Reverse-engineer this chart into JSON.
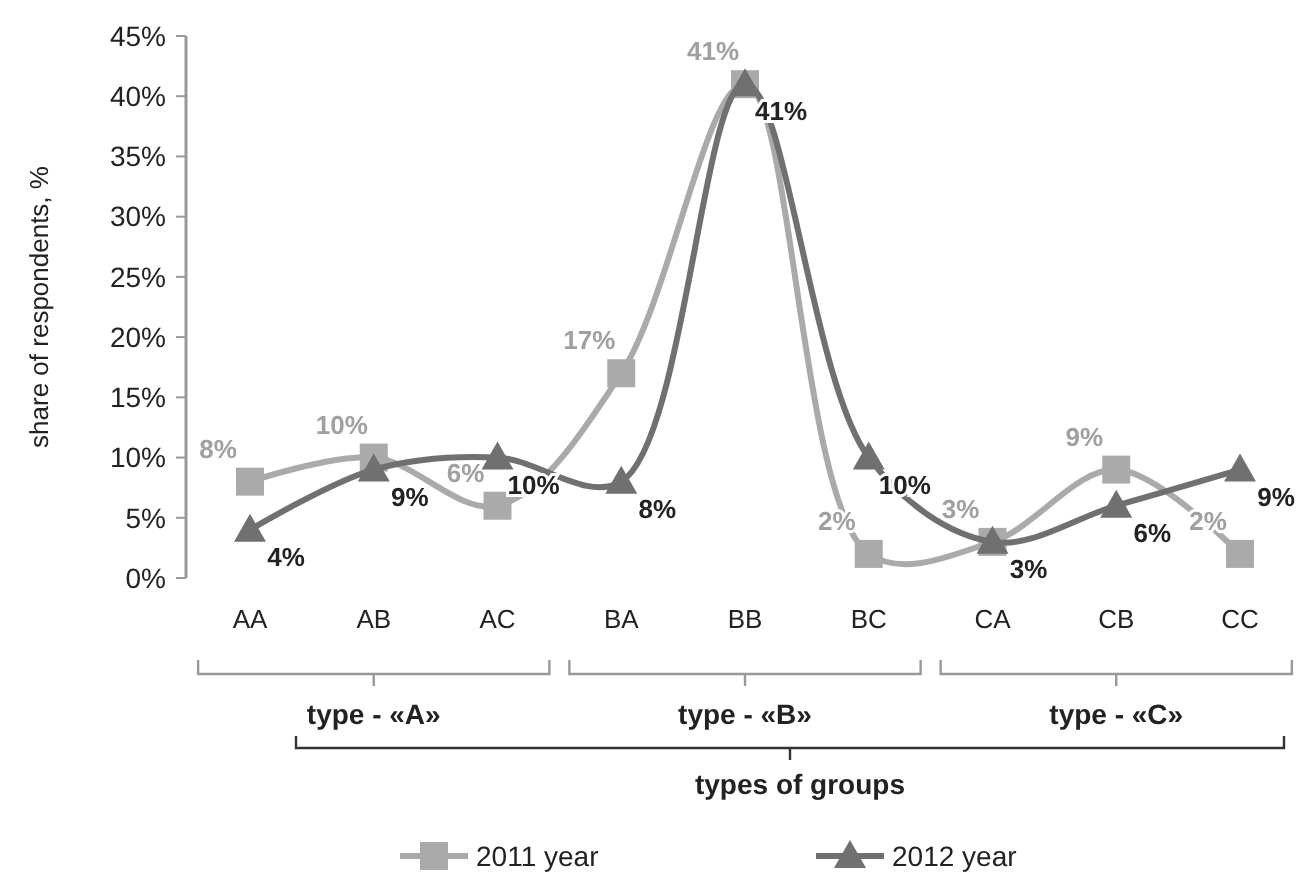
{
  "chart_data": {
    "type": "line",
    "ylabel": "share of respondents, %",
    "xlabel": "types of groups",
    "categories": [
      "AA",
      "AB",
      "AC",
      "BA",
      "BB",
      "BC",
      "CA",
      "CB",
      "CC"
    ],
    "series": [
      {
        "name": "2011  year",
        "color": "#aaaaaa",
        "marker": "square",
        "values": [
          8,
          10,
          6,
          17,
          41,
          2,
          3,
          9,
          2
        ],
        "value_labels": [
          "8%",
          "10%",
          "6%",
          "17%",
          "41%",
          "2%",
          "3%",
          "9%",
          "2%"
        ]
      },
      {
        "name": "2012  year",
        "color": "#707070",
        "marker": "triangle",
        "values": [
          4,
          9,
          10,
          8,
          41,
          10,
          3,
          6,
          9
        ],
        "value_labels": [
          "4%",
          "9%",
          "10%",
          "8%",
          "41%",
          "10%",
          "3%",
          "6%",
          "9%"
        ]
      }
    ],
    "ylim": [
      0,
      45
    ],
    "yticks": [
      {
        "value": 0,
        "label": "0%"
      },
      {
        "value": 5,
        "label": "5%"
      },
      {
        "value": 10,
        "label": "10%"
      },
      {
        "value": 15,
        "label": "15%"
      },
      {
        "value": 20,
        "label": "20%"
      },
      {
        "value": 25,
        "label": "25%"
      },
      {
        "value": 30,
        "label": "30%"
      },
      {
        "value": 35,
        "label": "35%"
      },
      {
        "value": 40,
        "label": "40%"
      },
      {
        "value": 45,
        "label": "45%"
      }
    ],
    "annotations": [
      "type - «A»",
      "type - «B»",
      "type - «C»"
    ],
    "grid": false,
    "legend": "bottom",
    "line_style": "solid"
  }
}
